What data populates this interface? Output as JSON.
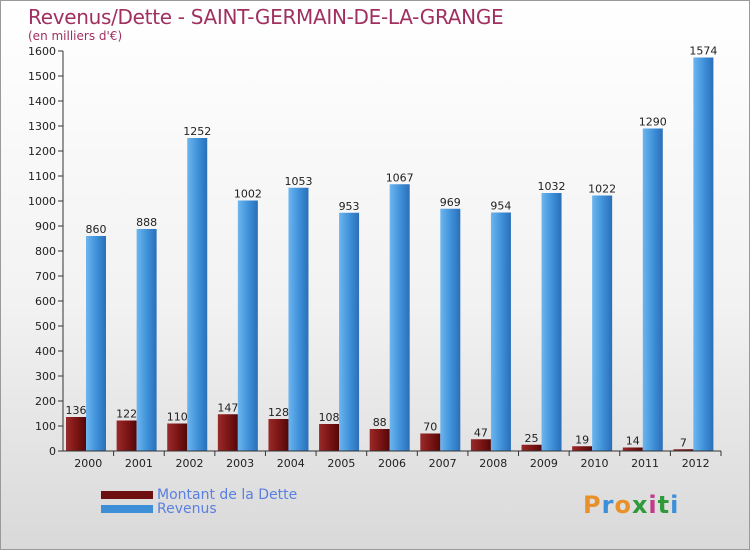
{
  "title": "Revenus/Dette - SAINT-GERMAIN-DE-LA-GRANGE",
  "subtitle": "(en milliers d'€)",
  "logo_text": "Proxiti",
  "colors": {
    "title": "#a03060",
    "dette": "#7a1414",
    "revenus": "#3d8fd8",
    "legend_text": "#5a7fe0"
  },
  "legend": [
    {
      "label": "Montant de la Dette",
      "color": "#6e1010"
    },
    {
      "label": "Revenus",
      "color": "#3d8fd8"
    }
  ],
  "chart_data": {
    "type": "bar",
    "categories": [
      "2000",
      "2001",
      "2002",
      "2003",
      "2004",
      "2005",
      "2006",
      "2007",
      "2008",
      "2009",
      "2010",
      "2011",
      "2012"
    ],
    "series": [
      {
        "name": "Montant de la Dette",
        "values": [
          136,
          122,
          110,
          147,
          128,
          108,
          88,
          70,
          47,
          25,
          19,
          14,
          7
        ]
      },
      {
        "name": "Revenus",
        "values": [
          860,
          888,
          1252,
          1002,
          1053,
          953,
          1067,
          969,
          954,
          1032,
          1022,
          1290,
          1574
        ]
      }
    ],
    "ylim": [
      0,
      1600
    ],
    "yticks": [
      0,
      100,
      200,
      300,
      400,
      500,
      600,
      700,
      800,
      900,
      1000,
      1100,
      1200,
      1300,
      1400,
      1500,
      1600
    ],
    "grid": false,
    "legend_position": "bottom-left"
  }
}
